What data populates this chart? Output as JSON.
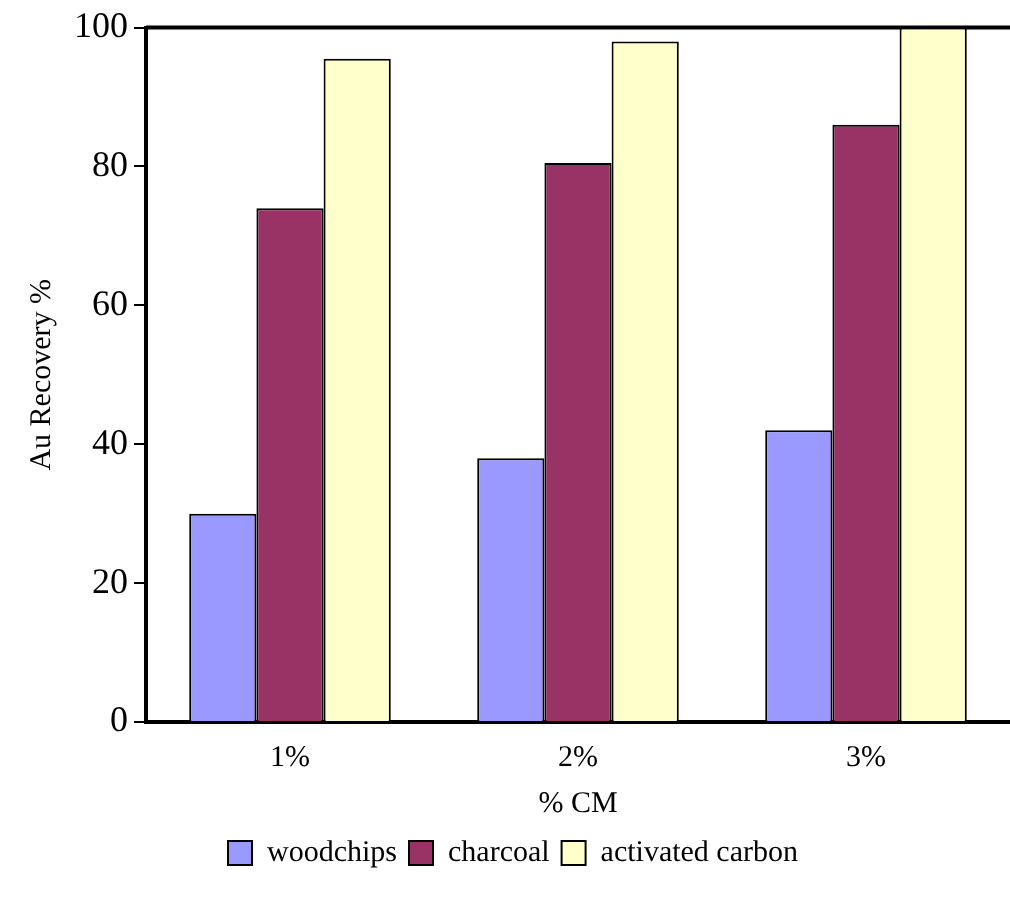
{
  "chart_data": {
    "type": "bar",
    "xlabel": "% CM",
    "ylabel": "Au Recovery %",
    "categories": [
      "1%",
      "2%",
      "3%"
    ],
    "series": [
      {
        "name": "woodchips",
        "color": "#9999ff",
        "values": [
          30,
          38,
          42
        ]
      },
      {
        "name": "charcoal",
        "color": "#993366",
        "values": [
          74,
          80.5,
          86
        ]
      },
      {
        "name": "activated carbon",
        "color": "#ffffcc",
        "values": [
          95.5,
          98,
          100
        ]
      }
    ],
    "ylim": [
      0,
      100
    ],
    "yticks": [
      0,
      20,
      40,
      60,
      80,
      100
    ],
    "grid": false,
    "legend": "bottom"
  }
}
